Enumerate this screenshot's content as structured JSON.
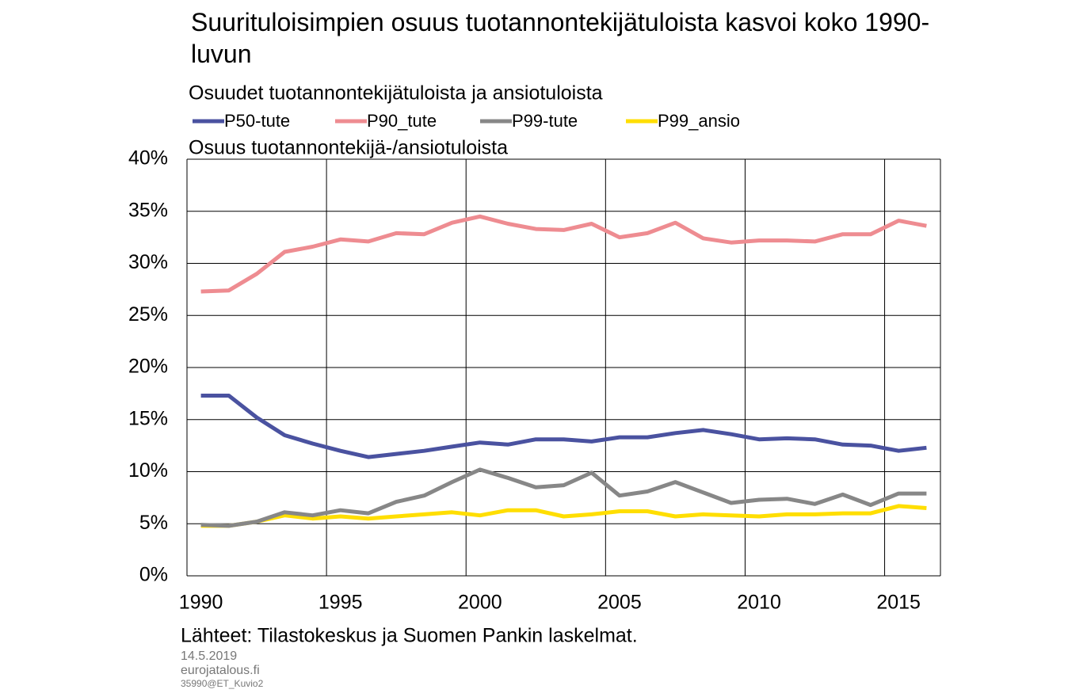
{
  "chart_data": {
    "type": "line",
    "title": "Suurituloisimpien osuus tuotannontekijätuloista kasvoi koko 1990-luvun",
    "subtitle": "Osuudet tuotannontekijätuloista ja ansiotuloista",
    "y_label": "Osuus tuotannontekijä-/ansiotuloista",
    "source": "Lähteet: Tilastokeskus ja Suomen Pankin laskelmat.",
    "notes": [
      "14.5.2019",
      "eurojatalous.fi",
      "35990@ET_Kuvio2"
    ],
    "categories": [
      "1990",
      null,
      null,
      null,
      null,
      "1995",
      null,
      null,
      null,
      null,
      "2000",
      null,
      null,
      null,
      null,
      "2005",
      null,
      null,
      null,
      null,
      "2010",
      null,
      null,
      null,
      null,
      "2015",
      null
    ],
    "ylim": [
      0,
      40
    ],
    "yticks": [
      {
        "value": 0,
        "label": "0%"
      },
      {
        "value": 5,
        "label": "5%"
      },
      {
        "value": 10,
        "label": "10%"
      },
      {
        "value": 15,
        "label": "15%"
      },
      {
        "value": 20,
        "label": "20%"
      },
      {
        "value": 25,
        "label": "25%"
      },
      {
        "value": 30,
        "label": "30%"
      },
      {
        "value": 35,
        "label": "35%"
      },
      {
        "value": 40,
        "label": "40%"
      }
    ],
    "grid": true,
    "legend": "top",
    "series": [
      {
        "name": "P50-tute",
        "color": "#4a52a0",
        "values": [
          17.3,
          17.3,
          15.2,
          13.5,
          12.7,
          12.0,
          11.4,
          11.7,
          12.0,
          12.4,
          12.8,
          12.6,
          13.1,
          13.1,
          12.9,
          13.3,
          13.3,
          13.7,
          14.0,
          13.6,
          13.1,
          13.2,
          13.1,
          12.6,
          12.5,
          12.0,
          12.3
        ]
      },
      {
        "name": "P90_tute",
        "color": "#ee8c91",
        "values": [
          27.3,
          27.4,
          29.0,
          31.1,
          31.6,
          32.3,
          32.1,
          32.9,
          32.8,
          33.9,
          34.5,
          33.8,
          33.3,
          33.2,
          33.8,
          32.5,
          32.9,
          33.9,
          32.4,
          32.0,
          32.2,
          32.2,
          32.1,
          32.8,
          32.8,
          34.1,
          33.6
        ]
      },
      {
        "name": "P99-tute",
        "color": "#878787",
        "values": [
          4.9,
          4.8,
          5.2,
          6.1,
          5.8,
          6.3,
          6.0,
          7.1,
          7.7,
          9.0,
          10.2,
          9.4,
          8.5,
          8.7,
          9.9,
          7.7,
          8.1,
          9.0,
          8.0,
          7.0,
          7.3,
          7.4,
          6.9,
          7.8,
          6.8,
          7.9,
          7.9
        ]
      },
      {
        "name": "P99_ansio",
        "color": "#ffde00",
        "values": [
          4.8,
          4.8,
          5.2,
          5.8,
          5.5,
          5.7,
          5.5,
          5.7,
          5.9,
          6.1,
          5.8,
          6.3,
          6.3,
          5.7,
          5.9,
          6.2,
          6.2,
          5.7,
          5.9,
          5.8,
          5.7,
          5.9,
          5.9,
          6.0,
          6.0,
          6.7,
          6.5
        ]
      }
    ]
  }
}
